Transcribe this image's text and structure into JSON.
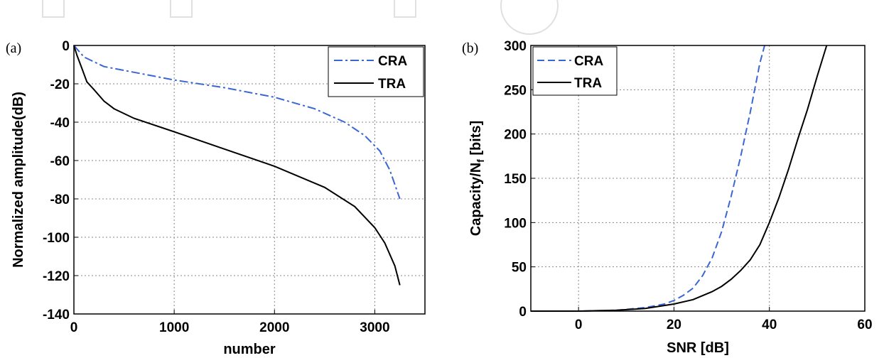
{
  "chart_data": [
    {
      "panel_label": "(a)",
      "type": "line",
      "xlabel": "number",
      "ylabel": "Normalized amplitude(dB)",
      "xlim": [
        0,
        3500
      ],
      "ylim": [
        -140,
        0
      ],
      "xticks": [
        0,
        1000,
        2000,
        3000
      ],
      "yticks": [
        0,
        -20,
        -40,
        -60,
        -80,
        -100,
        -120,
        -140
      ],
      "xtick_labels": [
        "0",
        "1000",
        "2000",
        "3000"
      ],
      "ytick_labels": [
        "0",
        "-20",
        "-40",
        "-60",
        "-80",
        "-100",
        "-120",
        "-140"
      ],
      "grid": true,
      "legend_position": "top-right",
      "series": [
        {
          "name": "CRA",
          "color": "#3a66d4",
          "dash": "dashdot",
          "x": [
            0,
            100,
            300,
            600,
            1000,
            1500,
            2000,
            2400,
            2700,
            2900,
            3050,
            3150,
            3250
          ],
          "y": [
            0,
            -6,
            -11,
            -14,
            -18,
            -22,
            -27,
            -33,
            -40,
            -47,
            -55,
            -65,
            -80
          ]
        },
        {
          "name": "TRA",
          "color": "#000000",
          "dash": "solid",
          "x": [
            0,
            30,
            80,
            130,
            200,
            300,
            400,
            600,
            1000,
            1500,
            2000,
            2500,
            2800,
            3000,
            3100,
            3200,
            3250
          ],
          "y": [
            0,
            -5,
            -12,
            -19,
            -23,
            -29,
            -33,
            -38,
            -45,
            -54,
            -63,
            -74,
            -84,
            -95,
            -103,
            -115,
            -125
          ]
        }
      ]
    },
    {
      "panel_label": "(b)",
      "type": "line",
      "xlabel": "SNR [dB]",
      "ylabel_main": "Capacity/N",
      "ylabel_sub": "f",
      "ylabel_rest": " [bits]",
      "xlim": [
        -10,
        60
      ],
      "ylim": [
        0,
        300
      ],
      "xticks": [
        0,
        20,
        40,
        60
      ],
      "yticks": [
        0,
        50,
        100,
        150,
        200,
        250,
        300
      ],
      "xtick_labels": [
        "0",
        "20",
        "40",
        "60"
      ],
      "ytick_labels": [
        "0",
        "50",
        "100",
        "150",
        "200",
        "250",
        "300"
      ],
      "grid": true,
      "legend_position": "top-left",
      "series": [
        {
          "name": "CRA",
          "color": "#3a66d4",
          "dash": "dashed",
          "x": [
            -10,
            0,
            8,
            14,
            18,
            20,
            22,
            24,
            26,
            28,
            30,
            32,
            34,
            36,
            38,
            39
          ],
          "y": [
            0,
            0,
            1,
            4,
            8,
            12,
            18,
            26,
            40,
            60,
            90,
            130,
            175,
            225,
            280,
            300
          ]
        },
        {
          "name": "TRA",
          "color": "#000000",
          "dash": "solid",
          "x": [
            -10,
            0,
            8,
            14,
            20,
            24,
            28,
            30,
            32,
            34,
            36,
            38,
            40,
            42,
            44,
            46,
            48,
            50,
            52
          ],
          "y": [
            0,
            0,
            1,
            3,
            8,
            13,
            22,
            28,
            36,
            46,
            58,
            75,
            100,
            128,
            160,
            195,
            228,
            265,
            300
          ]
        }
      ]
    }
  ]
}
